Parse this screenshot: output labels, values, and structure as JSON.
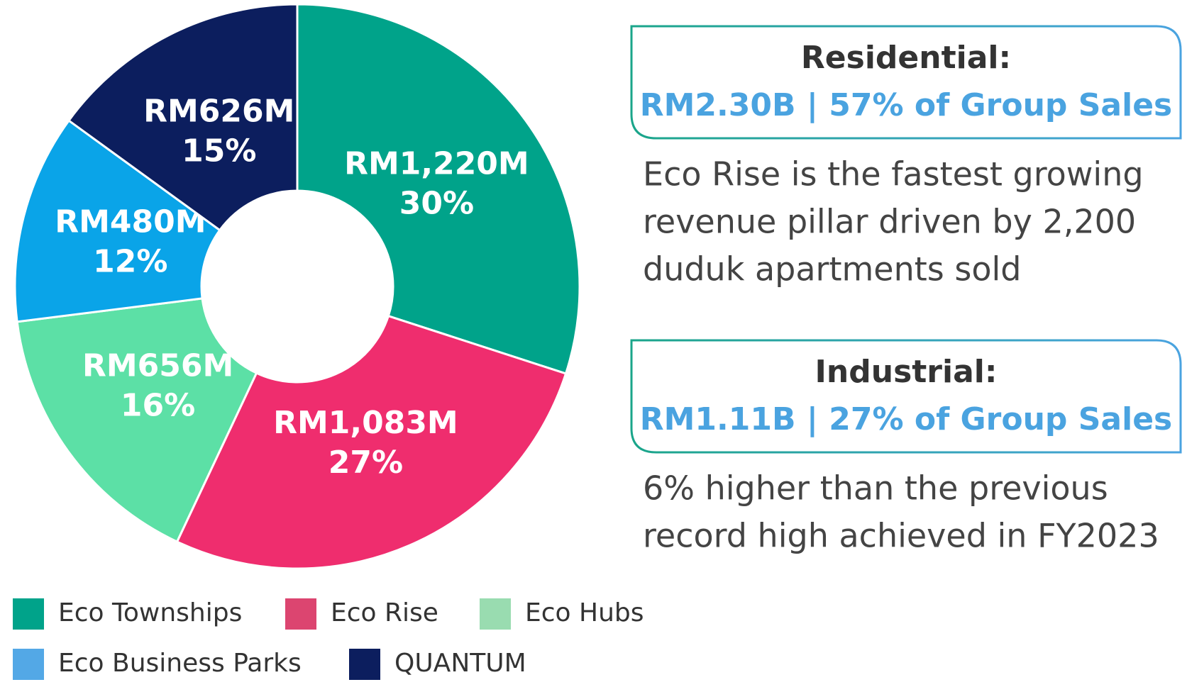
{
  "chart_data": {
    "type": "pie",
    "categories": [
      "Eco Townships",
      "Eco Rise",
      "Eco Hubs",
      "Eco Business Parks",
      "QUANTUM"
    ],
    "values": [
      30,
      27,
      16,
      12,
      15
    ],
    "value_labels": [
      "30%",
      "27%",
      "16%",
      "12%",
      "15%"
    ],
    "amounts": [
      1220,
      1083,
      656,
      480,
      626
    ],
    "amount_labels": [
      "RM1,220M",
      "RM1,083M",
      "RM656M",
      "RM480M",
      "RM626M"
    ],
    "colors": [
      "#00a38a",
      "#ef2d6e",
      "#5ce0a6",
      "#0aa4e8",
      "#0c1e5e"
    ],
    "legend_colors": [
      "#00a38a",
      "#dc4570",
      "#99dcb0",
      "#53a8e6",
      "#0c1e5e"
    ],
    "donut": true
  },
  "panels": [
    {
      "title": "Residential:",
      "subtitle": "RM2.30B | 57% of Group Sales",
      "lines": [
        "Eco Rise is the fastest growing",
        "revenue pillar driven by 2,200",
        "duduk apartments sold"
      ]
    },
    {
      "title": "Industrial:",
      "subtitle": "RM1.11B | 27% of Group Sales",
      "lines": [
        "6% higher than the previous",
        "record high achieved in FY2023"
      ]
    }
  ]
}
